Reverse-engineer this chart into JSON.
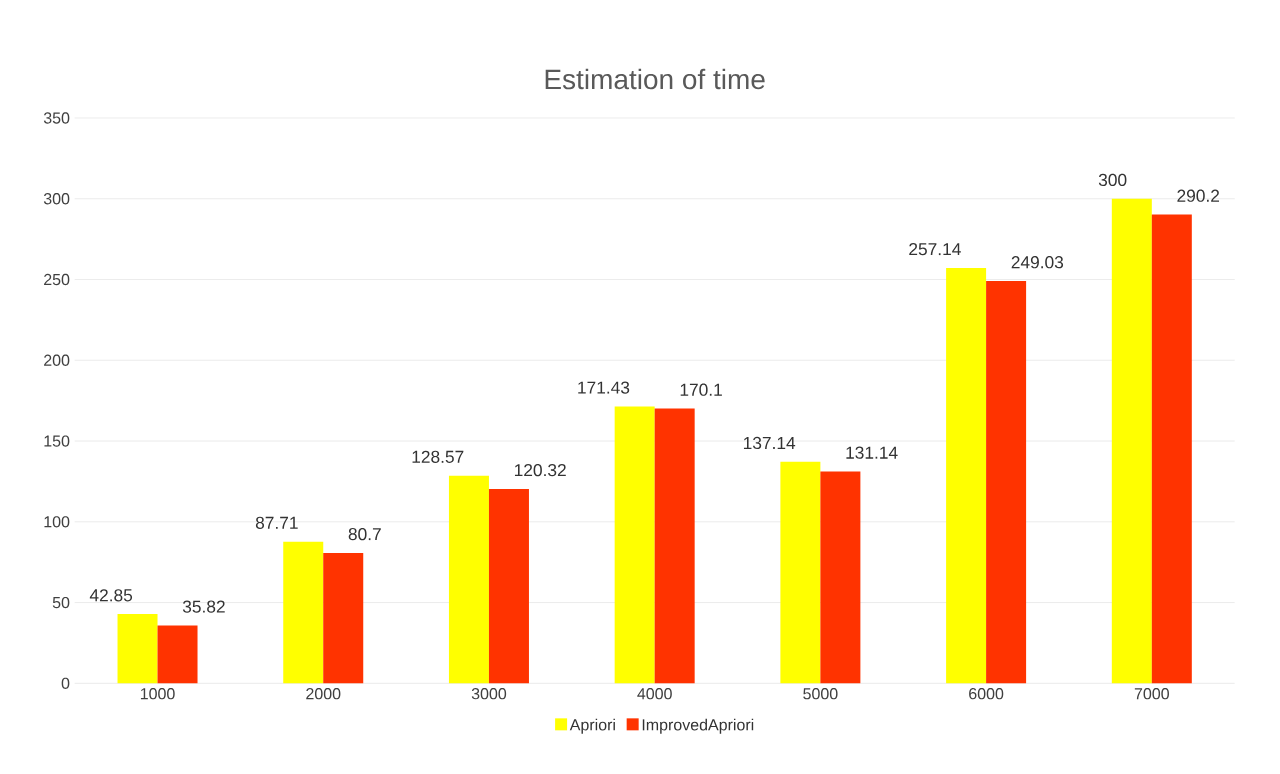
{
  "chart_data": {
    "type": "bar",
    "title": "Estimation of time",
    "categories": [
      "1000",
      "2000",
      "3000",
      "4000",
      "5000",
      "6000",
      "7000"
    ],
    "series": [
      {
        "name": "Apriori",
        "color": "#ffff00",
        "values": [
          42.85,
          87.71,
          128.57,
          171.43,
          137.14,
          257.14,
          300
        ]
      },
      {
        "name": "ImprovedApriori",
        "color": "#ff3300",
        "values": [
          35.82,
          80.7,
          120.32,
          170.1,
          131.14,
          249.03,
          290.2
        ]
      }
    ],
    "ylim": [
      0,
      350
    ],
    "yticks": [
      0,
      50,
      100,
      150,
      200,
      250,
      300,
      350
    ],
    "grid": "y",
    "legend": "bottom",
    "data_labels": true
  }
}
